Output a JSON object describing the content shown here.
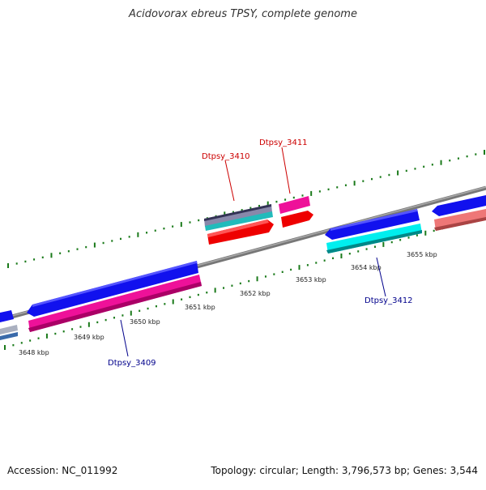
{
  "title": "Acidovorax ebreus TPSY, complete genome",
  "footer": {
    "accession": "Accession: NC_011992",
    "summary": "Topology: circular; Length: 3,796,573 bp; Genes: 3,544"
  },
  "ruler": {
    "ticks": [
      "3648 kbp",
      "3649 kbp",
      "3650 kbp",
      "3651 kbp",
      "3652 kbp",
      "3653 kbp",
      "3654 kbp",
      "3655 kbp"
    ]
  },
  "genes": [
    {
      "label": "Dtpsy_3409",
      "strand": "reverse",
      "color": "#00008b"
    },
    {
      "label": "Dtpsy_3410",
      "strand": "forward",
      "color": "#cc0000"
    },
    {
      "label": "Dtpsy_3411",
      "strand": "forward",
      "color": "#cc0000"
    },
    {
      "label": "Dtpsy_3412",
      "strand": "reverse",
      "color": "#00008b"
    }
  ],
  "colors": {
    "backbone": "#888888",
    "ticks": "#1a7a1a",
    "cds_blue": "#1111ee",
    "cds_magenta": "#ee1199",
    "cds_red": "#ee0000",
    "cds_cyan": "#00eeee",
    "cds_pink": "#ee7777"
  }
}
